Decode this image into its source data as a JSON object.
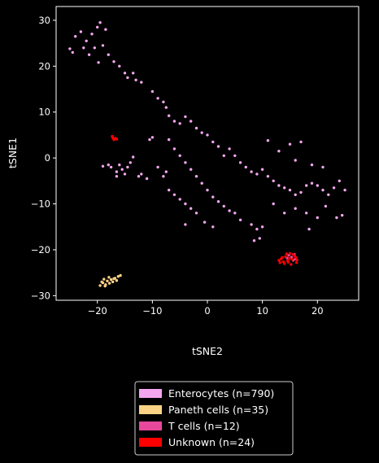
{
  "chart_data": {
    "type": "scatter",
    "xlabel": "tSNE2",
    "ylabel": "tSNE1",
    "xlim": [
      -27.5,
      27.5
    ],
    "ylim": [
      -31,
      33
    ],
    "xticks": [
      -20,
      -10,
      0,
      10,
      20
    ],
    "yticks": [
      -30,
      -20,
      -10,
      0,
      10,
      20,
      30
    ],
    "xtick_labels": [
      "−20",
      "−10",
      "0",
      "10",
      "20"
    ],
    "ytick_labels": [
      "−30",
      "−20",
      "−10",
      "0",
      "10",
      "20",
      "30"
    ],
    "grid": false,
    "legend_placement": "bottom-center, below plot",
    "background": "#000000",
    "series": [
      {
        "name": "Enterocytes (n=790)",
        "color": "#f4a6ef",
        "count": 790,
        "points": [
          [
            -24,
            26.5
          ],
          [
            -23,
            27.5
          ],
          [
            -22,
            25.5
          ],
          [
            -21,
            27
          ],
          [
            -20,
            28.5
          ],
          [
            -19.5,
            29.5
          ],
          [
            -18.5,
            28
          ],
          [
            -19,
            24.5
          ],
          [
            -20.5,
            24
          ],
          [
            -22.5,
            24
          ],
          [
            -24.5,
            23
          ],
          [
            -25,
            23.8
          ],
          [
            -21.5,
            22.5
          ],
          [
            -19.8,
            20.8
          ],
          [
            -18,
            22.5
          ],
          [
            -17,
            21
          ],
          [
            -16,
            20
          ],
          [
            -15,
            18.5
          ],
          [
            -14.5,
            17.5
          ],
          [
            -13.5,
            18.5
          ],
          [
            -13,
            17
          ],
          [
            -12,
            16.5
          ],
          [
            -10,
            14.5
          ],
          [
            -9,
            13
          ],
          [
            -8,
            12.2
          ],
          [
            -7.5,
            11
          ],
          [
            -7,
            9.2
          ],
          [
            -6,
            8
          ],
          [
            -5,
            7.5
          ],
          [
            -4,
            9
          ],
          [
            -3,
            8
          ],
          [
            -2,
            6.5
          ],
          [
            -1,
            5.5
          ],
          [
            0,
            5
          ],
          [
            1,
            3.5
          ],
          [
            2,
            2.5
          ],
          [
            3,
            0.5
          ],
          [
            4,
            2
          ],
          [
            5,
            0.5
          ],
          [
            6,
            -1
          ],
          [
            7,
            -2
          ],
          [
            8,
            -3
          ],
          [
            9,
            -3.5
          ],
          [
            10,
            -2.5
          ],
          [
            11,
            -4
          ],
          [
            12,
            -5
          ],
          [
            13,
            -6
          ],
          [
            14,
            -6.5
          ],
          [
            15,
            -7
          ],
          [
            16,
            -8
          ],
          [
            17,
            -7.5
          ],
          [
            18,
            -6
          ],
          [
            19,
            -5.5
          ],
          [
            20,
            -6
          ],
          [
            21,
            -7
          ],
          [
            22,
            -8
          ],
          [
            23,
            -6.5
          ],
          [
            24,
            -5
          ],
          [
            25,
            -7
          ],
          [
            21,
            -2
          ],
          [
            19,
            -1.5
          ],
          [
            16,
            -0.5
          ],
          [
            13,
            1.5
          ],
          [
            11,
            3.8
          ],
          [
            15,
            3
          ],
          [
            17,
            3.5
          ],
          [
            -7,
            4
          ],
          [
            -6,
            2
          ],
          [
            -5,
            0.5
          ],
          [
            -4,
            -1
          ],
          [
            -3,
            -2.5
          ],
          [
            -2,
            -4
          ],
          [
            -1,
            -5.5
          ],
          [
            0,
            -7
          ],
          [
            1,
            -8.5
          ],
          [
            2,
            -9.5
          ],
          [
            3,
            -10.5
          ],
          [
            4,
            -11.5
          ],
          [
            5,
            -12
          ],
          [
            6,
            -13.5
          ],
          [
            -2,
            -12
          ],
          [
            -3,
            -11
          ],
          [
            -4,
            -10
          ],
          [
            -5,
            -9
          ],
          [
            -6,
            -8
          ],
          [
            -7,
            -7
          ],
          [
            -4,
            -14.5
          ],
          [
            1,
            -15
          ],
          [
            -0.5,
            -14
          ],
          [
            8,
            -14.5
          ],
          [
            9,
            -15.5
          ],
          [
            10,
            -15
          ],
          [
            8.5,
            -18
          ],
          [
            9.5,
            -17.5
          ],
          [
            18.5,
            -15.5
          ],
          [
            21.5,
            -10.5
          ],
          [
            23.5,
            -13
          ],
          [
            24.5,
            -12.5
          ],
          [
            12,
            -10
          ],
          [
            14,
            -12
          ],
          [
            16,
            -11
          ],
          [
            18,
            -12
          ],
          [
            20,
            -13
          ],
          [
            -9,
            -2
          ],
          [
            -8,
            -4
          ],
          [
            -7.5,
            -3
          ],
          [
            -10,
            4.5
          ],
          [
            -10.5,
            4
          ],
          [
            -17.5,
            -2
          ],
          [
            -16.5,
            -3
          ],
          [
            -16,
            -1.5
          ],
          [
            -15.5,
            -2.5
          ],
          [
            -15,
            -3.5
          ],
          [
            -14.5,
            -2
          ],
          [
            -14,
            -1
          ],
          [
            -13.5,
            0.2
          ],
          [
            -12.5,
            -4
          ],
          [
            -12,
            -3.5
          ],
          [
            -11,
            -4.5
          ],
          [
            -19,
            -1.8
          ],
          [
            -18,
            -1.5
          ],
          [
            -16.5,
            -4
          ]
        ]
      },
      {
        "name": "Paneth cells (n=35)",
        "color": "#fcd386",
        "count": 35,
        "points": [
          [
            -19.5,
            -27.8
          ],
          [
            -19,
            -27.2
          ],
          [
            -18.5,
            -27.6
          ],
          [
            -18.2,
            -26.8
          ],
          [
            -17.8,
            -27.3
          ],
          [
            -17.5,
            -26.5
          ],
          [
            -17.2,
            -27.0
          ],
          [
            -16.8,
            -26.2
          ],
          [
            -16.5,
            -26.7
          ],
          [
            -16.2,
            -25.8
          ],
          [
            -15.8,
            -25.6
          ],
          [
            -18.8,
            -26.4
          ],
          [
            -17.9,
            -26.0
          ],
          [
            -17.0,
            -26.3
          ],
          [
            -19.2,
            -27.0
          ],
          [
            -18.6,
            -27.9
          ]
        ]
      },
      {
        "name": "T cells (n=12)",
        "color": "#e8489c",
        "count": 12,
        "points": [
          [
            14.8,
            -21.2
          ],
          [
            15.3,
            -21.6
          ],
          [
            15.8,
            -21.0
          ],
          [
            16.0,
            -22.0
          ],
          [
            14.5,
            -21.8
          ],
          [
            15.6,
            -22.3
          ]
        ]
      },
      {
        "name": "Unknown (n=24)",
        "color": "#ff0000",
        "count": 24,
        "points": [
          [
            -17.2,
            4.4
          ],
          [
            -17.0,
            4.0
          ],
          [
            -16.7,
            4.3
          ],
          [
            -17.3,
            4.7
          ],
          [
            -16.5,
            4.1
          ],
          [
            13.0,
            -22.3
          ],
          [
            13.4,
            -22.0
          ],
          [
            13.8,
            -22.6
          ],
          [
            14.2,
            -21.5
          ],
          [
            14.6,
            -22.4
          ],
          [
            15.0,
            -20.8
          ],
          [
            15.4,
            -22.1
          ],
          [
            15.9,
            -21.4
          ],
          [
            16.2,
            -22.8
          ],
          [
            13.6,
            -21.7
          ],
          [
            14.0,
            -23.0
          ],
          [
            14.9,
            -21.9
          ],
          [
            15.6,
            -21.0
          ],
          [
            16.1,
            -21.7
          ],
          [
            13.2,
            -22.8
          ],
          [
            14.4,
            -20.9
          ],
          [
            15.2,
            -23.2
          ],
          [
            16.3,
            -22.2
          ],
          [
            14.7,
            -22.7
          ]
        ]
      }
    ]
  }
}
